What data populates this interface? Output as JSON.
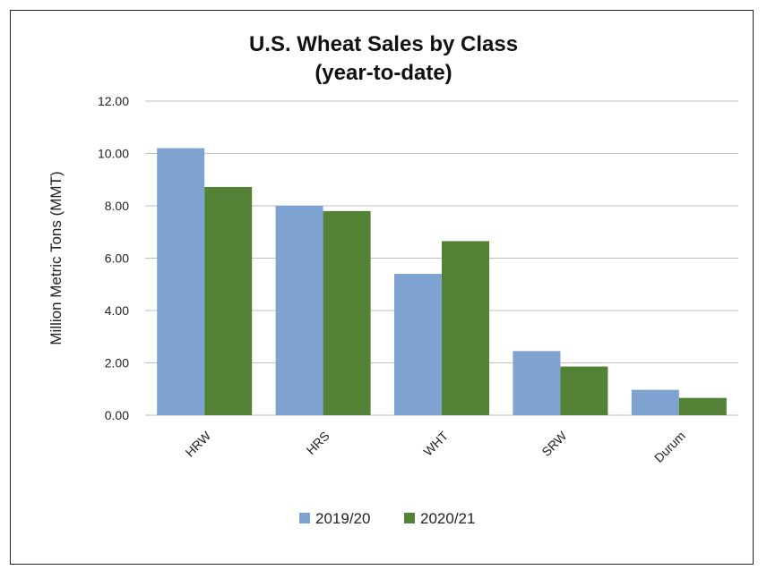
{
  "chart_data": {
    "type": "bar",
    "title_line1": "U.S. Wheat Sales by Class",
    "title_line2": "(year-to-date)",
    "ylabel": "Million Metric Tons (MMT)",
    "xlabel": "",
    "categories": [
      "HRW",
      "HRS",
      "WHT",
      "SRW",
      "Durum"
    ],
    "series": [
      {
        "name": "2019/20",
        "color": "#7fa3d1",
        "values": [
          10.2,
          8.0,
          5.4,
          2.45,
          0.97
        ]
      },
      {
        "name": "2020/21",
        "color": "#538135",
        "values": [
          8.72,
          7.8,
          6.65,
          1.86,
          0.66
        ]
      }
    ],
    "ylim": [
      0,
      12
    ],
    "yticks": [
      "0.00",
      "2.00",
      "4.00",
      "6.00",
      "8.00",
      "10.00",
      "12.00"
    ],
    "grid": true,
    "legend_position": "bottom"
  }
}
